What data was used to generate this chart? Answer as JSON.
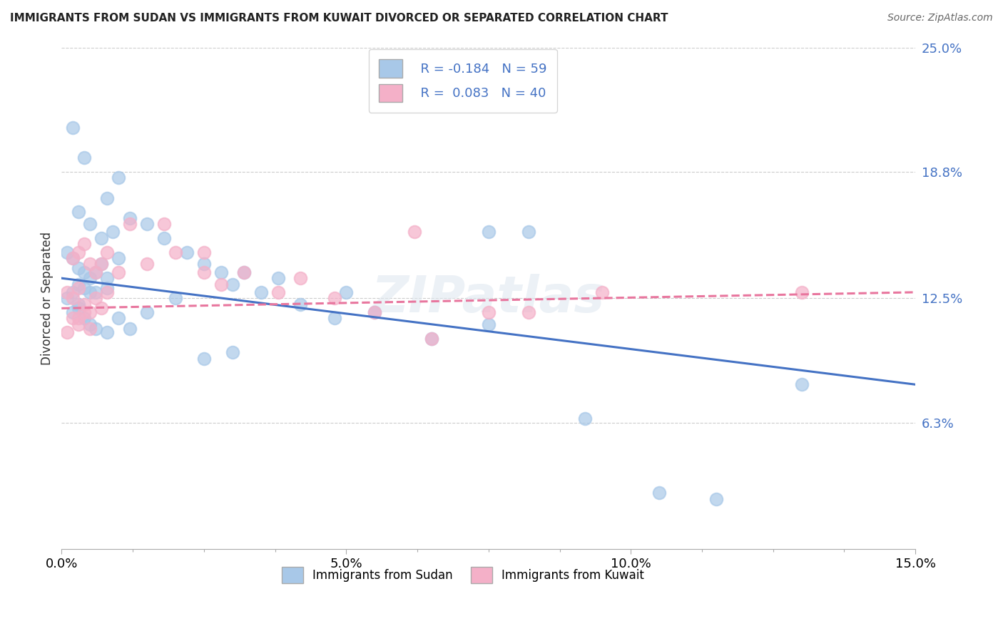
{
  "title": "IMMIGRANTS FROM SUDAN VS IMMIGRANTS FROM KUWAIT DIVORCED OR SEPARATED CORRELATION CHART",
  "source": "Source: ZipAtlas.com",
  "ylabel_label": "Divorced or Separated",
  "x_min": 0.0,
  "x_max": 0.15,
  "y_min": 0.0,
  "y_max": 0.25,
  "y_ticks_right": [
    0.063,
    0.125,
    0.188,
    0.25
  ],
  "y_tick_labels_right": [
    "6.3%",
    "12.5%",
    "18.8%",
    "25.0%"
  ],
  "sudan_color": "#a8c8e8",
  "kuwait_color": "#f4b0c8",
  "sudan_line_color": "#4472c4",
  "kuwait_line_color": "#e8769e",
  "legend_r_sudan": "R = -0.184",
  "legend_n_sudan": "N = 59",
  "legend_r_kuwait": "R =  0.083",
  "legend_n_kuwait": "N = 40",
  "watermark": "ZIPatlas",
  "sudan_points_x": [
    0.002,
    0.004,
    0.008,
    0.01,
    0.003,
    0.005,
    0.007,
    0.009,
    0.012,
    0.001,
    0.002,
    0.003,
    0.004,
    0.005,
    0.006,
    0.007,
    0.008,
    0.01,
    0.002,
    0.003,
    0.004,
    0.005,
    0.001,
    0.003,
    0.006,
    0.008,
    0.015,
    0.018,
    0.022,
    0.025,
    0.028,
    0.03,
    0.032,
    0.035,
    0.038,
    0.042,
    0.048,
    0.055,
    0.065,
    0.075,
    0.082,
    0.092,
    0.105,
    0.115,
    0.13,
    0.002,
    0.003,
    0.004,
    0.005,
    0.006,
    0.008,
    0.01,
    0.012,
    0.015,
    0.02,
    0.025,
    0.03,
    0.05,
    0.075
  ],
  "sudan_points_y": [
    0.21,
    0.195,
    0.175,
    0.185,
    0.168,
    0.162,
    0.155,
    0.158,
    0.165,
    0.148,
    0.145,
    0.14,
    0.138,
    0.135,
    0.138,
    0.142,
    0.13,
    0.145,
    0.128,
    0.132,
    0.13,
    0.128,
    0.125,
    0.122,
    0.128,
    0.135,
    0.162,
    0.155,
    0.148,
    0.142,
    0.138,
    0.132,
    0.138,
    0.128,
    0.135,
    0.122,
    0.115,
    0.118,
    0.105,
    0.112,
    0.158,
    0.065,
    0.028,
    0.025,
    0.082,
    0.118,
    0.12,
    0.115,
    0.112,
    0.11,
    0.108,
    0.115,
    0.11,
    0.118,
    0.125,
    0.095,
    0.098,
    0.128,
    0.158
  ],
  "kuwait_points_x": [
    0.001,
    0.002,
    0.003,
    0.004,
    0.005,
    0.006,
    0.007,
    0.008,
    0.002,
    0.003,
    0.004,
    0.005,
    0.001,
    0.003,
    0.01,
    0.015,
    0.02,
    0.025,
    0.028,
    0.032,
    0.038,
    0.042,
    0.048,
    0.055,
    0.065,
    0.075,
    0.082,
    0.095,
    0.002,
    0.003,
    0.004,
    0.005,
    0.006,
    0.007,
    0.008,
    0.012,
    0.018,
    0.025,
    0.062,
    0.13
  ],
  "kuwait_points_y": [
    0.128,
    0.125,
    0.13,
    0.122,
    0.118,
    0.125,
    0.12,
    0.128,
    0.115,
    0.112,
    0.118,
    0.11,
    0.108,
    0.115,
    0.138,
    0.142,
    0.148,
    0.138,
    0.132,
    0.138,
    0.128,
    0.135,
    0.125,
    0.118,
    0.105,
    0.118,
    0.118,
    0.128,
    0.145,
    0.148,
    0.152,
    0.142,
    0.138,
    0.142,
    0.148,
    0.162,
    0.162,
    0.148,
    0.158,
    0.128
  ]
}
